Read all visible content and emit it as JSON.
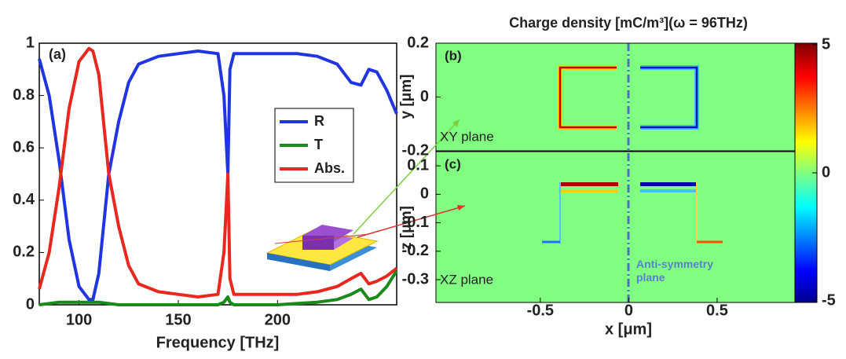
{
  "chart_data": [
    {
      "type": "line",
      "label": "(a)",
      "xlabel": "Frequency [THz]",
      "x": [
        80,
        85,
        90,
        95,
        100,
        105,
        107,
        110,
        115,
        120,
        125,
        130,
        140,
        150,
        160,
        170,
        173,
        175,
        176,
        178,
        190,
        200,
        210,
        220,
        230,
        237,
        242,
        246,
        250,
        255,
        260
      ],
      "series": [
        {
          "name": "R",
          "color": "#2035e0",
          "values": [
            0.94,
            0.8,
            0.55,
            0.25,
            0.07,
            0.02,
            0.02,
            0.12,
            0.5,
            0.7,
            0.85,
            0.92,
            0.95,
            0.96,
            0.97,
            0.96,
            0.8,
            0.5,
            0.9,
            0.96,
            0.96,
            0.96,
            0.96,
            0.95,
            0.92,
            0.85,
            0.84,
            0.9,
            0.89,
            0.82,
            0.73
          ]
        },
        {
          "name": "T",
          "color": "#1a8a1a",
          "values": [
            0,
            0.005,
            0.01,
            0.01,
            0.01,
            0.01,
            0.01,
            0.01,
            0.005,
            0,
            0,
            0,
            0,
            0,
            0,
            0,
            0.01,
            0.03,
            0.01,
            0,
            0,
            0,
            0.005,
            0.01,
            0.02,
            0.04,
            0.06,
            0.02,
            0.03,
            0.07,
            0.13
          ]
        },
        {
          "name": "Abs.",
          "color": "#e8281e",
          "values": [
            0.06,
            0.2,
            0.45,
            0.75,
            0.93,
            0.98,
            0.97,
            0.88,
            0.5,
            0.3,
            0.15,
            0.08,
            0.05,
            0.04,
            0.03,
            0.04,
            0.2,
            0.5,
            0.1,
            0.04,
            0.04,
            0.04,
            0.04,
            0.05,
            0.07,
            0.1,
            0.12,
            0.08,
            0.09,
            0.11,
            0.14
          ]
        }
      ],
      "xlim": [
        80,
        260
      ],
      "xticks": [
        100,
        150,
        200
      ],
      "ylim": [
        0,
        1
      ],
      "yticks": [
        0,
        0.2,
        0.4,
        0.6,
        0.8,
        1
      ],
      "legend": "center-right"
    },
    {
      "type": "field",
      "title": "Charge density [mC/m³](ω = 96THz)",
      "label": "(b)",
      "plane": "XY plane",
      "ylabel": "y [μm]",
      "xlim": [
        -1.09,
        0.94
      ],
      "ylim": [
        -0.2,
        0.2
      ],
      "yticks": [
        -0.2,
        0,
        0.2
      ]
    },
    {
      "type": "field",
      "label": "(c)",
      "plane": "XZ plane",
      "ylabel": "z [μm]",
      "xlabel": "x [μm]",
      "xlim": [
        -1.09,
        0.94
      ],
      "xticks": [
        -0.5,
        0,
        0.5
      ],
      "ylim": [
        -0.38,
        0.15
      ],
      "yticks": [
        -0.3,
        -0.2,
        -0.1,
        0,
        0.1
      ],
      "annotation": "Anti-symmetry plane",
      "colorbar": {
        "clim": [
          -5,
          5
        ],
        "ticks": [
          -5,
          0,
          5
        ]
      }
    }
  ]
}
